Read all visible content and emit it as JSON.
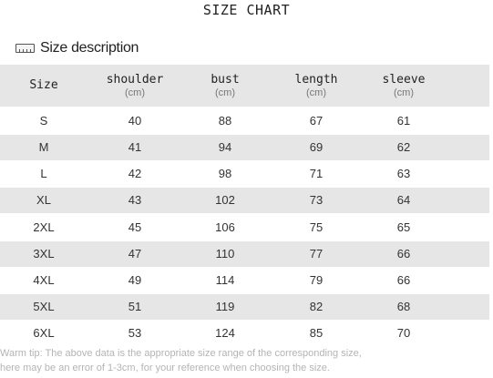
{
  "title": "SIZE CHART",
  "section": {
    "icon": "ruler-icon",
    "label": "Size description"
  },
  "table": {
    "columns": [
      {
        "name": "Size",
        "unit": ""
      },
      {
        "name": "shoulder",
        "unit": "(cm)"
      },
      {
        "name": "bust",
        "unit": "(cm)"
      },
      {
        "name": "length",
        "unit": "(cm)"
      },
      {
        "name": "sleeve",
        "unit": "(cm)"
      }
    ],
    "rows": [
      [
        "S",
        "40",
        "88",
        "67",
        "61"
      ],
      [
        "M",
        "41",
        "94",
        "69",
        "62"
      ],
      [
        "L",
        "42",
        "98",
        "71",
        "63"
      ],
      [
        "XL",
        "43",
        "102",
        "73",
        "64"
      ],
      [
        "2XL",
        "45",
        "106",
        "75",
        "65"
      ],
      [
        "3XL",
        "47",
        "110",
        "77",
        "66"
      ],
      [
        "4XL",
        "49",
        "114",
        "79",
        "66"
      ],
      [
        "5XL",
        "51",
        "119",
        "82",
        "68"
      ],
      [
        "6XL",
        "53",
        "124",
        "85",
        "70"
      ]
    ]
  },
  "tip": {
    "line1": "Warm tip: The above data is the appropriate size range of the corresponding size,",
    "line2": "here may be an error of 1-3cm, for your reference when choosing the size."
  }
}
